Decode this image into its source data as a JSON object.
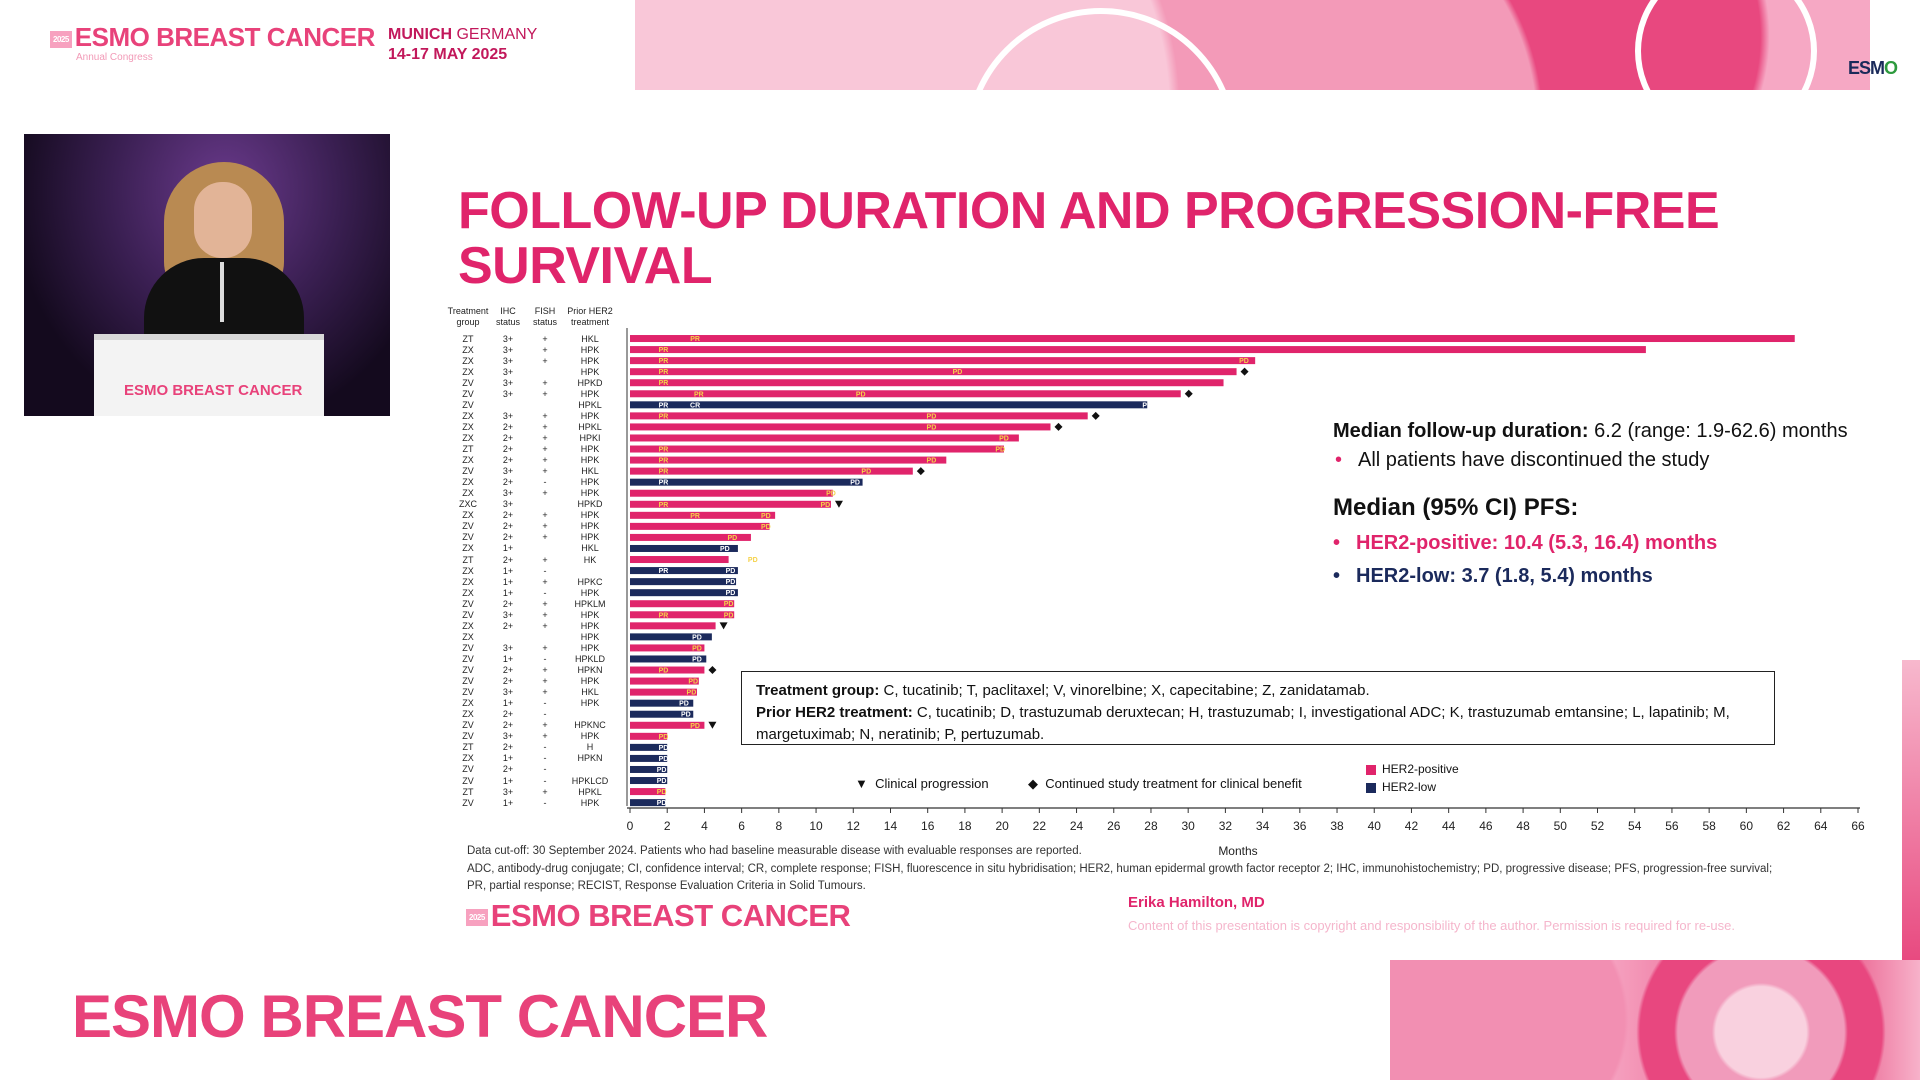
{
  "header": {
    "brand": "ESMO BREAST CANCER",
    "brand_year": "2025",
    "brand_sub": "Annual Congress",
    "city_bold": "MUNICH",
    "city_rest": " GERMANY",
    "dates": "14-17 MAY 2025",
    "logo_e": "ESM",
    "logo_o": "O"
  },
  "speaker_video": {
    "podium_label": "ESMO BREAST CANCER"
  },
  "slide": {
    "title": "FOLLOW-UP DURATION AND PROGRESSION-FREE SURVIVAL",
    "stats": {
      "followup_label": "Median follow-up duration:",
      "followup_value": " 6.2 (range: 1.9-62.6) months",
      "followup_bullet": "All patients have discontinued the study",
      "pfs_heading": "Median (95% CI) PFS:",
      "her2_positive": "HER2-positive: 10.4 (5.3, 16.4) months",
      "her2_low": "HER2-low: 3.7 (1.8, 5.4) months"
    },
    "legend_box": {
      "treatment_label": "Treatment group:",
      "treatment_text": " C, tucatinib; T, paclitaxel; V, vinorelbine; X, capecitabine; Z, zanidatamab.",
      "prior_label": "Prior HER2 treatment:",
      "prior_text": " C, tucatinib; D, trastuzumab deruxtecan; H, trastuzumab; I, investigational ADC; K, trastuzumab emtansine; L, lapatinib; M, margetuximab; N, neratinib; P, pertuzumab."
    },
    "markers": {
      "clinical": "Clinical progression",
      "continued": "Continued study treatment for clinical benefit"
    },
    "footnote1": "Data cut-off: 30 September 2024. Patients who had baseline measurable disease with evaluable responses are reported.",
    "footnote2": "ADC, antibody-drug conjugate; CI, confidence interval; CR, complete response; FISH, fluorescence in situ hybridisation; HER2, human epidermal growth factor receptor 2; IHC, immunohistochemistry; PD, progressive disease; PFS, progression-free survival;",
    "footnote3": "PR, partial response; RECIST, Response Evaluation Criteria in Solid Tumours.",
    "author": "Erika Hamilton, MD",
    "copyright": "Content of this presentation is copyright and responsibility of the author. Permission is required for re-use.",
    "slide_brand": "ESMO BREAST CANCER",
    "slide_brand_year": "2025"
  },
  "footer": {
    "brand": "ESMO BREAST CANCER"
  },
  "chart_data": {
    "type": "bar",
    "orientation": "horizontal",
    "xlabel": "Months",
    "xlim": [
      0,
      66
    ],
    "xticks": [
      0,
      2,
      4,
      6,
      8,
      10,
      12,
      14,
      16,
      18,
      20,
      22,
      24,
      26,
      28,
      30,
      32,
      34,
      36,
      38,
      40,
      42,
      44,
      46,
      48,
      50,
      52,
      54,
      56,
      58,
      60,
      62,
      64,
      66
    ],
    "column_headers": [
      "Treatment group",
      "IHC status",
      "FISH status",
      "Prior HER2 treatment"
    ],
    "legend": [
      {
        "name": "HER2-positive",
        "color": "#e0246b"
      },
      {
        "name": "HER2-low",
        "color": "#1b2a5c"
      }
    ],
    "rows": [
      {
        "g": "ZT",
        "ihc": "3+",
        "fish": "+",
        "prior": "HKL",
        "type": "pos",
        "v": 62.6,
        "ann": [
          {
            "l": "PR",
            "x": 3.5
          }
        ],
        "m": ""
      },
      {
        "g": "ZX",
        "ihc": "3+",
        "fish": "+",
        "prior": "HPK",
        "type": "pos",
        "v": 54.6,
        "ann": [
          {
            "l": "PR",
            "x": 1.8
          }
        ],
        "m": ""
      },
      {
        "g": "ZX",
        "ihc": "3+",
        "fish": "+",
        "prior": "HPK",
        "type": "pos",
        "v": 33.6,
        "ann": [
          {
            "l": "PR",
            "x": 1.8
          },
          {
            "l": "PD",
            "x": 33
          }
        ],
        "m": ""
      },
      {
        "g": "ZX",
        "ihc": "3+",
        "fish": "",
        "prior": "HPK",
        "type": "pos",
        "v": 32.6,
        "ann": [
          {
            "l": "PR",
            "x": 1.8
          },
          {
            "l": "PD",
            "x": 17.6
          }
        ],
        "m": "diamond"
      },
      {
        "g": "ZV",
        "ihc": "3+",
        "fish": "+",
        "prior": "HPKD",
        "type": "pos",
        "v": 31.9,
        "ann": [
          {
            "l": "PR",
            "x": 1.8
          }
        ],
        "m": ""
      },
      {
        "g": "ZV",
        "ihc": "3+",
        "fish": "+",
        "prior": "HPK",
        "type": "pos",
        "v": 29.6,
        "ann": [
          {
            "l": "PR",
            "x": 3.7
          },
          {
            "l": "PD",
            "x": 12.4
          }
        ],
        "m": "diamond"
      },
      {
        "g": "ZV",
        "ihc": "",
        "fish": "",
        "prior": "HPKL",
        "type": "low",
        "v": 27.8,
        "ann": [
          {
            "l": "PR",
            "x": 1.8
          },
          {
            "l": "CR",
            "x": 3.5
          },
          {
            "l": "PD",
            "x": 27.8
          }
        ],
        "m": ""
      },
      {
        "g": "ZX",
        "ihc": "3+",
        "fish": "+",
        "prior": "HPK",
        "type": "pos",
        "v": 24.6,
        "ann": [
          {
            "l": "PR",
            "x": 1.8
          },
          {
            "l": "PD",
            "x": 16.2
          }
        ],
        "m": "diamond"
      },
      {
        "g": "ZX",
        "ihc": "2+",
        "fish": "+",
        "prior": "HPKL",
        "type": "pos",
        "v": 22.6,
        "ann": [
          {
            "l": "PD",
            "x": 16.2
          }
        ],
        "m": "diamond"
      },
      {
        "g": "ZX",
        "ihc": "2+",
        "fish": "+",
        "prior": "HPKI",
        "type": "pos",
        "v": 20.9,
        "ann": [
          {
            "l": "PD",
            "x": 20.1
          }
        ],
        "m": ""
      },
      {
        "g": "ZT",
        "ihc": "2+",
        "fish": "+",
        "prior": "HPK",
        "type": "pos",
        "v": 20.1,
        "ann": [
          {
            "l": "PR",
            "x": 1.8
          },
          {
            "l": "PD",
            "x": 19.9
          }
        ],
        "m": ""
      },
      {
        "g": "ZX",
        "ihc": "2+",
        "fish": "+",
        "prior": "HPK",
        "type": "pos",
        "v": 17.0,
        "ann": [
          {
            "l": "PR",
            "x": 1.8
          },
          {
            "l": "PD",
            "x": 16.2
          }
        ],
        "m": ""
      },
      {
        "g": "ZV",
        "ihc": "3+",
        "fish": "+",
        "prior": "HKL",
        "type": "pos",
        "v": 15.2,
        "ann": [
          {
            "l": "PR",
            "x": 1.8
          },
          {
            "l": "PD",
            "x": 12.7
          }
        ],
        "m": "diamond"
      },
      {
        "g": "ZX",
        "ihc": "2+",
        "fish": "-",
        "prior": "HPK",
        "type": "low",
        "v": 12.5,
        "ann": [
          {
            "l": "PR",
            "x": 1.8
          },
          {
            "l": "PD",
            "x": 12.1
          }
        ],
        "m": ""
      },
      {
        "g": "ZX",
        "ihc": "3+",
        "fish": "+",
        "prior": "HPK",
        "type": "pos",
        "v": 10.9,
        "ann": [
          {
            "l": "PD",
            "x": 10.8
          }
        ],
        "m": ""
      },
      {
        "g": "ZXC",
        "ihc": "3+",
        "fish": "",
        "prior": "HPKD",
        "type": "pos",
        "v": 10.8,
        "ann": [
          {
            "l": "PR",
            "x": 1.8
          },
          {
            "l": "PD",
            "x": 10.5
          }
        ],
        "m": "triangle"
      },
      {
        "g": "ZX",
        "ihc": "2+",
        "fish": "+",
        "prior": "HPK",
        "type": "pos",
        "v": 7.8,
        "ann": [
          {
            "l": "PR",
            "x": 3.5
          },
          {
            "l": "PD",
            "x": 7.3
          }
        ],
        "m": ""
      },
      {
        "g": "ZV",
        "ihc": "2+",
        "fish": "+",
        "prior": "HPK",
        "type": "pos",
        "v": 7.5,
        "ann": [
          {
            "l": "PD",
            "x": 7.3
          }
        ],
        "m": ""
      },
      {
        "g": "ZV",
        "ihc": "2+",
        "fish": "+",
        "prior": "HPK",
        "type": "pos",
        "v": 6.5,
        "ann": [
          {
            "l": "PD",
            "x": 5.5
          }
        ],
        "m": ""
      },
      {
        "g": "ZX",
        "ihc": "1+",
        "fish": "",
        "prior": "HKL",
        "type": "low",
        "v": 5.8,
        "ann": [
          {
            "l": "PD",
            "x": 5.1
          }
        ],
        "m": ""
      },
      {
        "g": "ZT",
        "ihc": "2+",
        "fish": "+",
        "prior": "HK",
        "type": "pos",
        "v": 5.3,
        "ann": [
          {
            "l": "PD",
            "x": 6.6
          }
        ],
        "m": ""
      },
      {
        "g": "ZX",
        "ihc": "1+",
        "fish": "-",
        "prior": "",
        "type": "low",
        "v": 5.8,
        "ann": [
          {
            "l": "PR",
            "x": 1.8
          },
          {
            "l": "PD",
            "x": 5.4
          }
        ],
        "m": ""
      },
      {
        "g": "ZX",
        "ihc": "1+",
        "fish": "+",
        "prior": "HPKC",
        "type": "low",
        "v": 5.7,
        "ann": [
          {
            "l": "PD",
            "x": 5.4
          }
        ],
        "m": ""
      },
      {
        "g": "ZX",
        "ihc": "1+",
        "fish": "-",
        "prior": "HPK",
        "type": "low",
        "v": 5.8,
        "ann": [
          {
            "l": "PD",
            "x": 5.4
          }
        ],
        "m": ""
      },
      {
        "g": "ZV",
        "ihc": "2+",
        "fish": "+",
        "prior": "HPKLM",
        "type": "pos",
        "v": 5.6,
        "ann": [
          {
            "l": "PD",
            "x": 5.3
          }
        ],
        "m": ""
      },
      {
        "g": "ZV",
        "ihc": "3+",
        "fish": "+",
        "prior": "HPK",
        "type": "pos",
        "v": 5.6,
        "ann": [
          {
            "l": "PR",
            "x": 1.8
          },
          {
            "l": "PD",
            "x": 5.3
          }
        ],
        "m": ""
      },
      {
        "g": "ZX",
        "ihc": "2+",
        "fish": "+",
        "prior": "HPK",
        "type": "pos",
        "v": 4.6,
        "ann": [],
        "m": "triangle"
      },
      {
        "g": "ZX",
        "ihc": "",
        "fish": "",
        "prior": "HPK",
        "type": "low",
        "v": 4.4,
        "ann": [
          {
            "l": "PD",
            "x": 3.6
          }
        ],
        "m": ""
      },
      {
        "g": "ZV",
        "ihc": "3+",
        "fish": "+",
        "prior": "HPK",
        "type": "pos",
        "v": 4.0,
        "ann": [
          {
            "l": "PD",
            "x": 3.6
          }
        ],
        "m": ""
      },
      {
        "g": "ZV",
        "ihc": "1+",
        "fish": "-",
        "prior": "HPKLD",
        "type": "low",
        "v": 4.1,
        "ann": [
          {
            "l": "PD",
            "x": 3.6
          }
        ],
        "m": ""
      },
      {
        "g": "ZV",
        "ihc": "2+",
        "fish": "+",
        "prior": "HPKN",
        "type": "pos",
        "v": 4.0,
        "ann": [
          {
            "l": "PD",
            "x": 1.8
          }
        ],
        "m": "diamond"
      },
      {
        "g": "ZV",
        "ihc": "2+",
        "fish": "+",
        "prior": "HPK",
        "type": "pos",
        "v": 3.7,
        "ann": [
          {
            "l": "PD",
            "x": 3.4
          }
        ],
        "m": ""
      },
      {
        "g": "ZV",
        "ihc": "3+",
        "fish": "+",
        "prior": "HKL",
        "type": "pos",
        "v": 3.6,
        "ann": [
          {
            "l": "PD",
            "x": 3.3
          }
        ],
        "m": ""
      },
      {
        "g": "ZX",
        "ihc": "1+",
        "fish": "-",
        "prior": "HPK",
        "type": "low",
        "v": 3.4,
        "ann": [
          {
            "l": "PD",
            "x": 2.9
          }
        ],
        "m": ""
      },
      {
        "g": "ZX",
        "ihc": "2+",
        "fish": "-",
        "prior": "",
        "type": "low",
        "v": 3.4,
        "ann": [
          {
            "l": "PD",
            "x": 3.0
          }
        ],
        "m": ""
      },
      {
        "g": "ZV",
        "ihc": "2+",
        "fish": "+",
        "prior": "HPKNC",
        "type": "pos",
        "v": 4.0,
        "ann": [
          {
            "l": "PD",
            "x": 3.5
          }
        ],
        "m": "triangle"
      },
      {
        "g": "ZV",
        "ihc": "3+",
        "fish": "+",
        "prior": "HPK",
        "type": "pos",
        "v": 2.0,
        "ann": [
          {
            "l": "PD",
            "x": 1.8
          }
        ],
        "m": ""
      },
      {
        "g": "ZT",
        "ihc": "2+",
        "fish": "-",
        "prior": "H",
        "type": "low",
        "v": 2.0,
        "ann": [
          {
            "l": "PD",
            "x": 1.8
          }
        ],
        "m": ""
      },
      {
        "g": "ZX",
        "ihc": "1+",
        "fish": "-",
        "prior": "HPKN",
        "type": "low",
        "v": 2.0,
        "ann": [
          {
            "l": "PD",
            "x": 1.8
          }
        ],
        "m": ""
      },
      {
        "g": "ZV",
        "ihc": "2+",
        "fish": "-",
        "prior": "",
        "type": "low",
        "v": 2.0,
        "ann": [
          {
            "l": "PD",
            "x": 1.7
          }
        ],
        "m": ""
      },
      {
        "g": "ZV",
        "ihc": "1+",
        "fish": "-",
        "prior": "HPKLCD",
        "type": "low",
        "v": 2.0,
        "ann": [
          {
            "l": "PD",
            "x": 1.7
          }
        ],
        "m": ""
      },
      {
        "g": "ZT",
        "ihc": "3+",
        "fish": "+",
        "prior": "HPKL",
        "type": "pos",
        "v": 1.9,
        "ann": [
          {
            "l": "PD",
            "x": 1.7
          }
        ],
        "m": ""
      },
      {
        "g": "ZV",
        "ihc": "1+",
        "fish": "-",
        "prior": "HPK",
        "type": "low",
        "v": 1.9,
        "ann": [
          {
            "l": "PD",
            "x": 1.7
          }
        ],
        "m": ""
      }
    ]
  }
}
